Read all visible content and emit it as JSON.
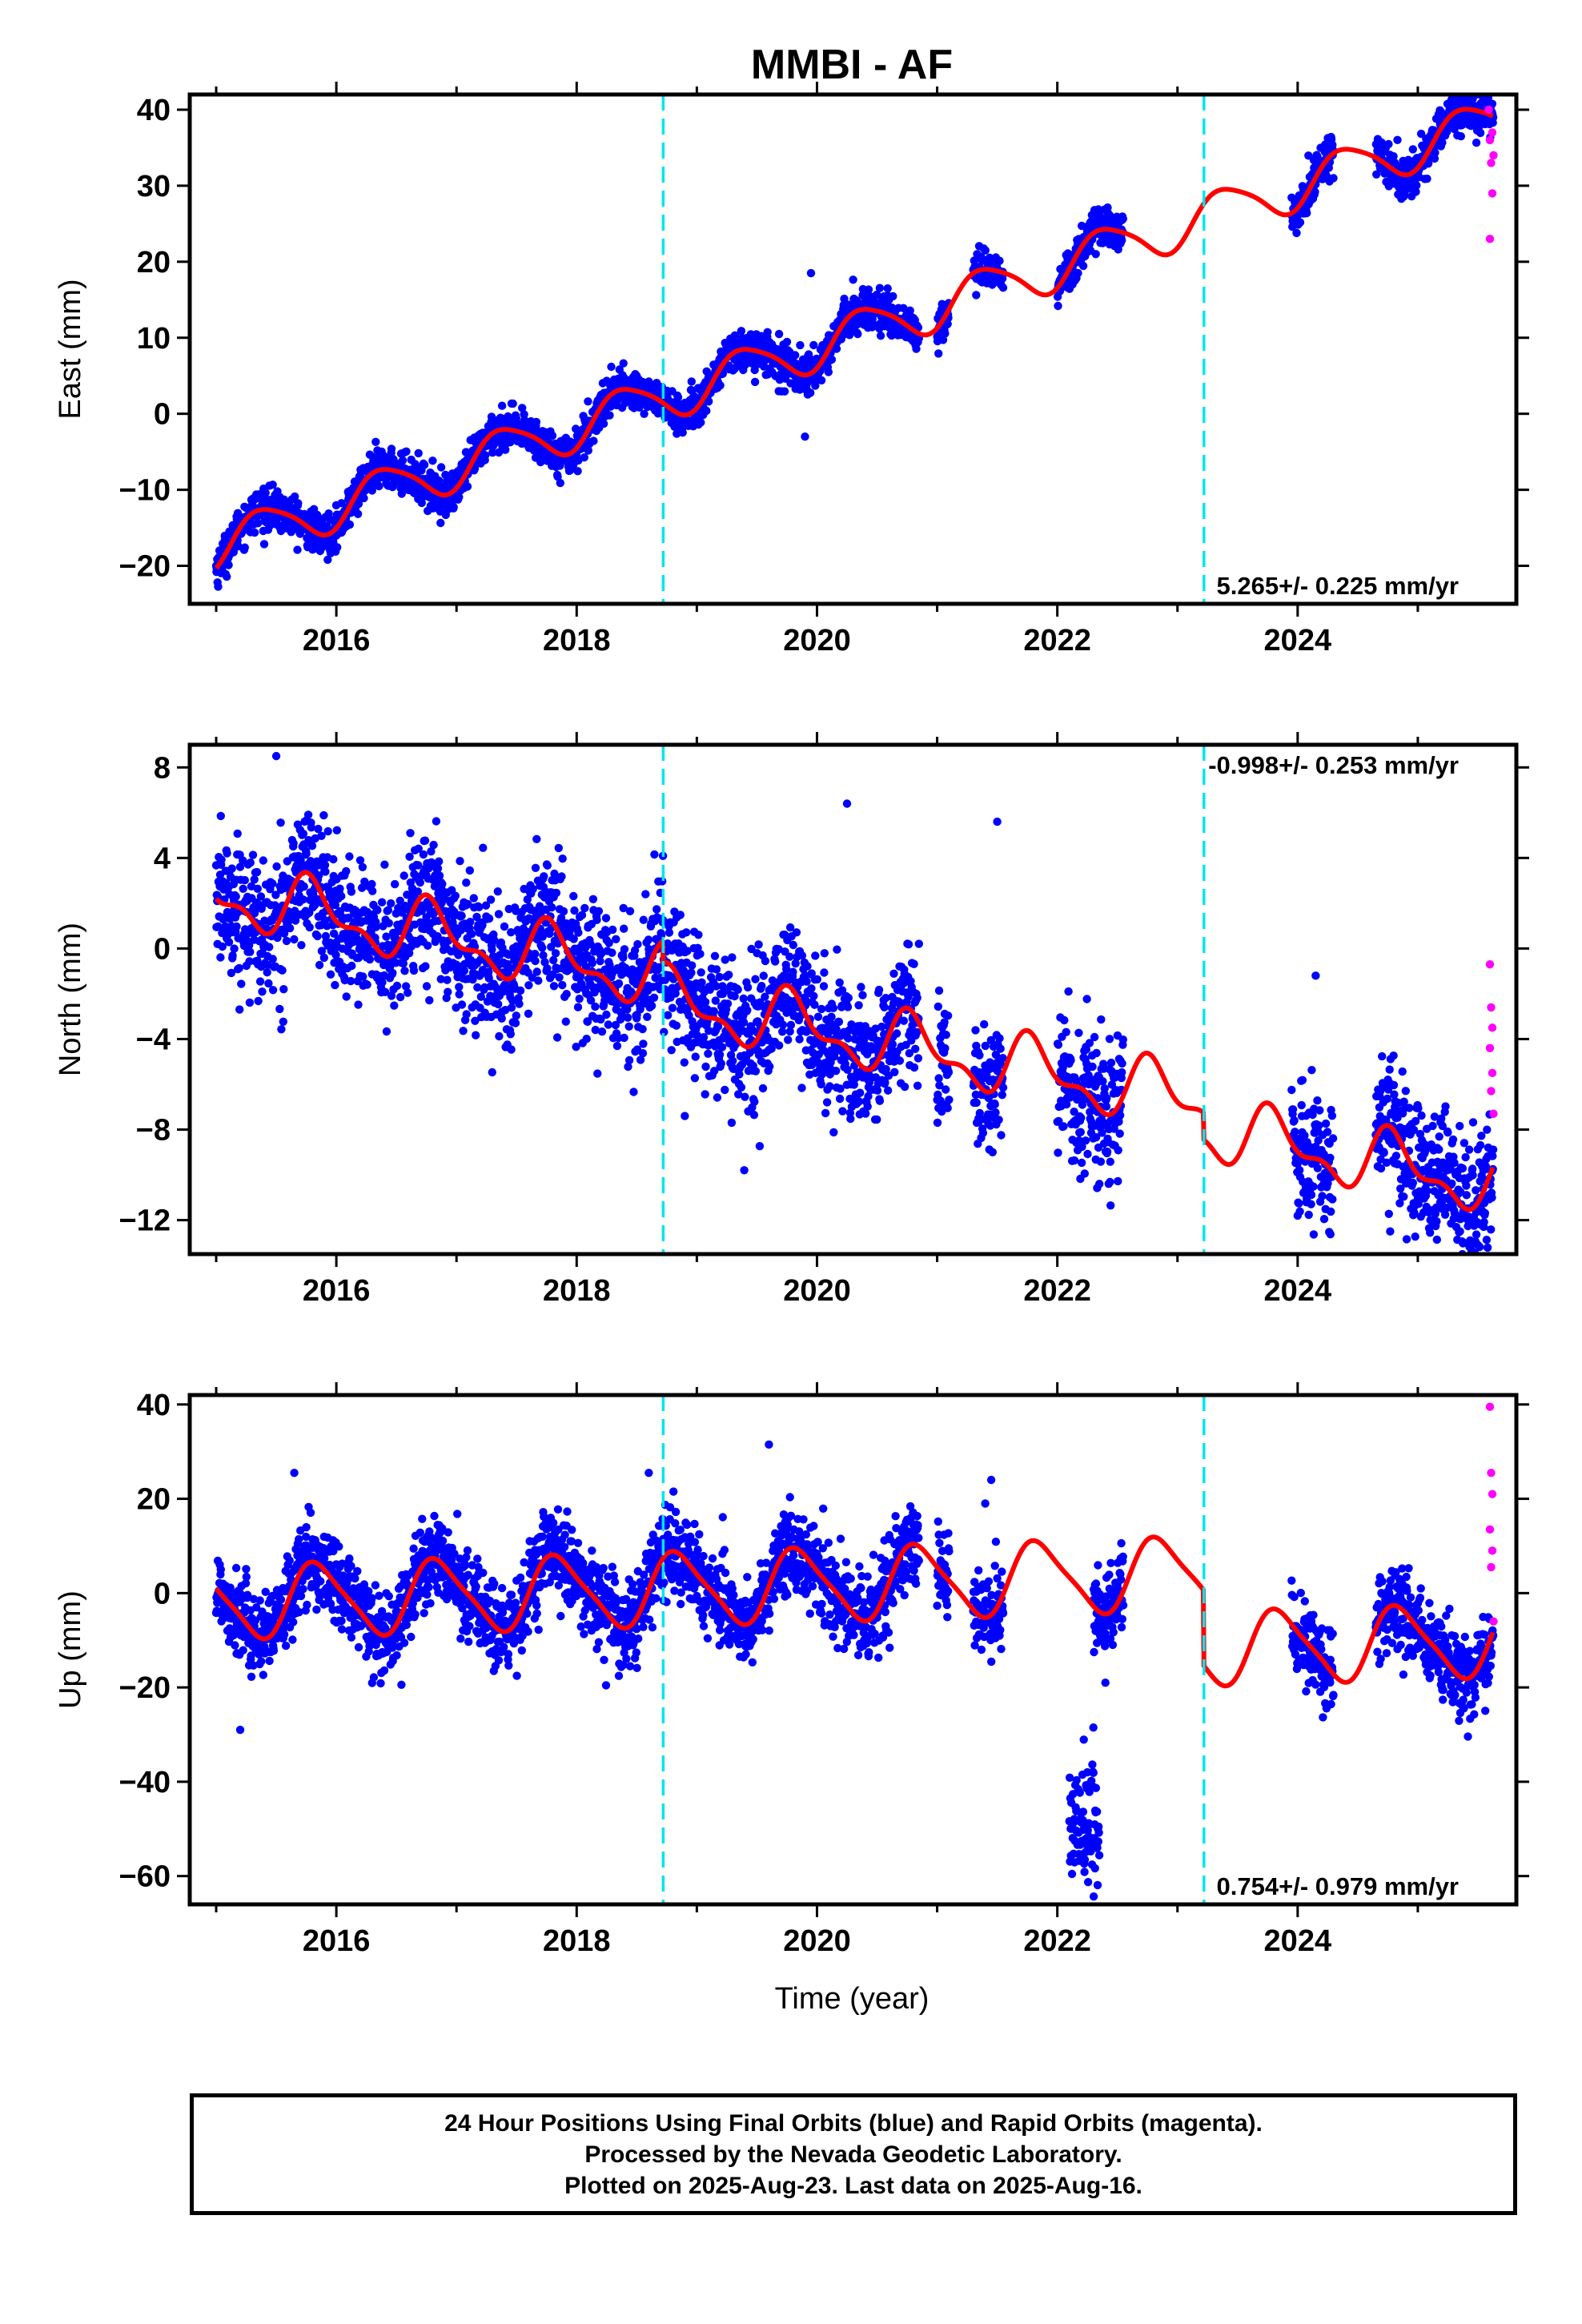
{
  "title": "MMBI - AF",
  "xlabel": "Time (year)",
  "caption": {
    "line1": "24 Hour Positions Using Final Orbits (blue) and Rapid Orbits (magenta).",
    "line2": "Processed by the Nevada Geodetic Laboratory.",
    "line3": "Plotted on 2025-Aug-23. Last data on 2025-Aug-16."
  },
  "colors": {
    "final_orbits": "#0000ff",
    "rapid_orbits": "#ff00ff",
    "model_fit": "#ff0000",
    "offset_lines": "#00e5ee"
  },
  "chart_data": [
    {
      "type": "scatter",
      "panel": "east",
      "ylabel": "East (mm)",
      "rate_label": "5.265+/- 0.225 mm/yr",
      "xlim": [
        2014.78,
        2025.82
      ],
      "ylim": [
        -25,
        42
      ],
      "yticks": [
        -20,
        -10,
        0,
        10,
        20,
        30,
        40
      ],
      "xticks": [
        2016,
        2018,
        2020,
        2022,
        2024
      ],
      "offset_epochs": [
        2018.72,
        2023.22
      ],
      "model": {
        "intercept_2015": -17.4,
        "trend_mm_yr": 5.265,
        "annual_amp": 3.0,
        "annual_phase_yr": 0.15,
        "semiannual_amp": 0.5,
        "semiannual_phase_yr": 0.1,
        "offset_steps": [
          0,
          0
        ]
      },
      "noise_sd": 1.3,
      "data_spans": [
        [
          2015.0,
          2020.85
        ],
        [
          2021.0,
          2021.1
        ],
        [
          2021.3,
          2021.55
        ],
        [
          2022.0,
          2022.55
        ],
        [
          2023.95,
          2024.3
        ],
        [
          2024.65,
          2025.63
        ]
      ],
      "rapid_points": [
        [
          2025.59,
          40.0
        ],
        [
          2025.6,
          36.0
        ],
        [
          2025.61,
          33.0
        ],
        [
          2025.62,
          29.0
        ],
        [
          2025.6,
          23.0
        ],
        [
          2025.62,
          37.0
        ],
        [
          2025.63,
          34.0
        ]
      ],
      "outliers": [
        [
          2019.95,
          18.5
        ],
        [
          2019.9,
          -3.0
        ]
      ]
    },
    {
      "type": "scatter",
      "panel": "north",
      "ylabel": "North (mm)",
      "rate_label": "-0.998+/- 0.253 mm/yr",
      "xlim": [
        2014.78,
        2025.82
      ],
      "ylim": [
        -13.5,
        9
      ],
      "yticks": [
        -12,
        -8,
        -4,
        0,
        4,
        8
      ],
      "xticks": [
        2016,
        2018,
        2020,
        2022,
        2024
      ],
      "offset_epochs": [
        2018.72,
        2023.22
      ],
      "model": {
        "intercept_2015": 2.4,
        "trend_mm_yr": -0.998,
        "annual_amp": 1.2,
        "annual_phase_yr": 0.55,
        "semiannual_amp": 0.6,
        "semiannual_phase_yr": 0.1,
        "offset_steps": [
          -1.0,
          -1.2
        ]
      },
      "noise_sd": 1.5,
      "data_spans": [
        [
          2015.0,
          2020.85
        ],
        [
          2021.0,
          2021.1
        ],
        [
          2021.3,
          2021.55
        ],
        [
          2022.0,
          2022.55
        ],
        [
          2023.95,
          2024.3
        ],
        [
          2024.65,
          2025.63
        ]
      ],
      "rapid_points": [
        [
          2025.6,
          -0.7
        ],
        [
          2025.61,
          -2.6
        ],
        [
          2025.62,
          -3.5
        ],
        [
          2025.6,
          -4.4
        ],
        [
          2025.62,
          -5.5
        ],
        [
          2025.61,
          -6.3
        ],
        [
          2025.63,
          -7.3
        ]
      ],
      "outliers": [
        [
          2015.5,
          8.5
        ],
        [
          2020.25,
          6.4
        ],
        [
          2021.5,
          5.6
        ],
        [
          2024.15,
          -1.2
        ],
        [
          2025.5,
          -13.1
        ],
        [
          2024.77,
          -12.5
        ],
        [
          2022.35,
          -10.4
        ],
        [
          2024.0,
          -11.8
        ],
        [
          2018.9,
          -7.4
        ]
      ]
    },
    {
      "type": "scatter",
      "panel": "up",
      "ylabel": "Up (mm)",
      "rate_label": "0.754+/- 0.979 mm/yr",
      "xlim": [
        2014.78,
        2025.82
      ],
      "ylim": [
        -66,
        42
      ],
      "yticks": [
        -60,
        -40,
        -20,
        0,
        20,
        40
      ],
      "xticks": [
        2016,
        2018,
        2020,
        2022,
        2024
      ],
      "offset_epochs": [
        2018.72,
        2023.22
      ],
      "model": {
        "intercept_2015": -2.0,
        "trend_mm_yr": 0.754,
        "annual_amp": 7.5,
        "annual_phase_yr": 0.6,
        "semiannual_amp": 1.5,
        "semiannual_phase_yr": 0.1,
        "offset_steps": [
          0,
          -16.0
        ]
      },
      "noise_sd": 4.5,
      "data_spans": [
        [
          2015.0,
          2020.85
        ],
        [
          2021.0,
          2021.1
        ],
        [
          2021.3,
          2021.55
        ],
        [
          2022.3,
          2022.55
        ],
        [
          2023.95,
          2024.3
        ],
        [
          2024.65,
          2025.63
        ]
      ],
      "anomaly_cluster": {
        "x_range": [
          2022.1,
          2022.35
        ],
        "y_center": -51,
        "y_spread": 7
      },
      "rapid_points": [
        [
          2025.6,
          39.5
        ],
        [
          2025.61,
          25.5
        ],
        [
          2025.62,
          21.0
        ],
        [
          2025.6,
          13.5
        ],
        [
          2025.62,
          9.0
        ],
        [
          2025.61,
          5.5
        ],
        [
          2025.63,
          -6.0
        ]
      ],
      "outliers": [
        [
          2015.2,
          -29.0
        ],
        [
          2022.3,
          -28.5
        ],
        [
          2022.4,
          -19.0
        ],
        [
          2022.25,
          -38.0
        ],
        [
          2019.6,
          31.5
        ],
        [
          2015.65,
          25.5
        ],
        [
          2018.6,
          25.5
        ],
        [
          2021.45,
          24.0
        ],
        [
          2021.4,
          19.0
        ]
      ]
    }
  ]
}
